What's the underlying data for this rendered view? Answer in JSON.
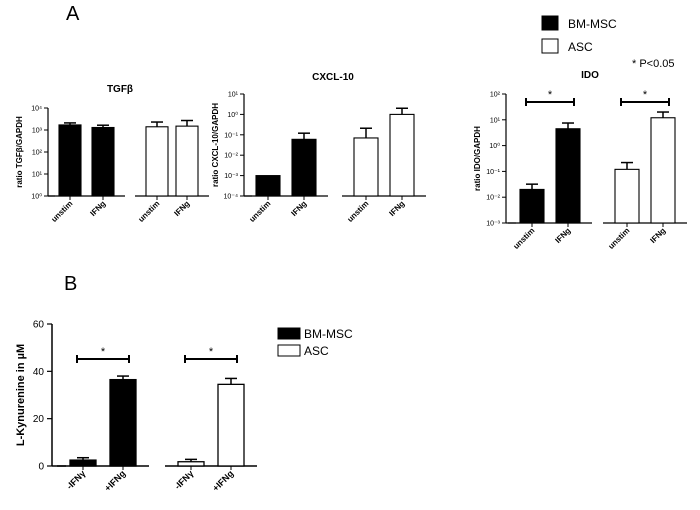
{
  "figure": {
    "panel_a_label": "A",
    "panel_b_label": "B",
    "significance_note": "* P<0.05",
    "legend_a": [
      {
        "label": "BM-MSC",
        "fill": "#000000"
      },
      {
        "label": "ASC",
        "fill": "#ffffff"
      }
    ],
    "legend_b": [
      {
        "label": "BM-MSC",
        "fill": "#000000"
      },
      {
        "label": "ASC",
        "fill": "#ffffff"
      }
    ]
  },
  "chart_data": [
    {
      "id": "tgfb",
      "type": "bar",
      "scale": "log",
      "title": "TGFβ",
      "ylabel": "ratio TGFβ/GAPDH",
      "ylim_exp": [
        0,
        4
      ],
      "ytick_labels": [
        "10⁰",
        "10¹",
        "10²",
        "10³",
        "10⁴"
      ],
      "categories": [
        "unstim",
        "IFNg",
        "unstim",
        "IFNg"
      ],
      "groups": [
        "BM-MSC",
        "BM-MSC",
        "ASC",
        "ASC"
      ],
      "values": [
        1700,
        1300,
        1400,
        1500
      ],
      "errors": [
        400,
        350,
        900,
        1200
      ],
      "significance": []
    },
    {
      "id": "cxcl10",
      "type": "bar",
      "scale": "log",
      "title": "CXCL-10",
      "ylabel": "ratio CXCL-10/GAPDH",
      "ylim_exp": [
        -4,
        1
      ],
      "ytick_labels": [
        "10⁻⁴",
        "10⁻³",
        "10⁻²",
        "10⁻¹",
        "10⁰",
        "10¹"
      ],
      "categories": [
        "unstim",
        "IFNg",
        "unstim",
        "IFNg"
      ],
      "groups": [
        "BM-MSC",
        "BM-MSC",
        "ASC",
        "ASC"
      ],
      "values": [
        0.001,
        0.06,
        0.07,
        1.0
      ],
      "errors": [
        0,
        0.06,
        0.14,
        1.0
      ],
      "significance": []
    },
    {
      "id": "ido",
      "type": "bar",
      "scale": "log",
      "title": "IDO",
      "ylabel": "ratio IDO/GAPDH",
      "ylim_exp": [
        -3,
        2
      ],
      "ytick_labels": [
        "10⁻³",
        "10⁻²",
        "10⁻¹",
        "10⁰",
        "10¹",
        "10²"
      ],
      "categories": [
        "unstim",
        "IFNg",
        "unstim",
        "IFNg"
      ],
      "groups": [
        "BM-MSC",
        "BM-MSC",
        "ASC",
        "ASC"
      ],
      "values": [
        0.02,
        4.5,
        0.12,
        12
      ],
      "errors": [
        0.012,
        3.0,
        0.1,
        8
      ],
      "significance": [
        {
          "from": 0,
          "to": 1,
          "label": "*"
        },
        {
          "from": 2,
          "to": 3,
          "label": "*"
        }
      ]
    },
    {
      "id": "kynurenine",
      "type": "bar",
      "scale": "linear",
      "title": "",
      "ylabel": "L-Kynurenine in µM",
      "ylim": [
        0,
        60
      ],
      "yticks": [
        0,
        20,
        40,
        60
      ],
      "categories": [
        "-IFNγ",
        "+IFNg",
        "-IFNγ",
        "+IFNg"
      ],
      "groups": [
        "BM-MSC",
        "BM-MSC",
        "ASC",
        "ASC"
      ],
      "values": [
        2.5,
        36.5,
        1.8,
        34.5
      ],
      "errors": [
        1.0,
        1.5,
        1.0,
        2.5
      ],
      "significance": [
        {
          "from": 0,
          "to": 1,
          "label": "*"
        },
        {
          "from": 2,
          "to": 3,
          "label": "*"
        }
      ]
    }
  ]
}
